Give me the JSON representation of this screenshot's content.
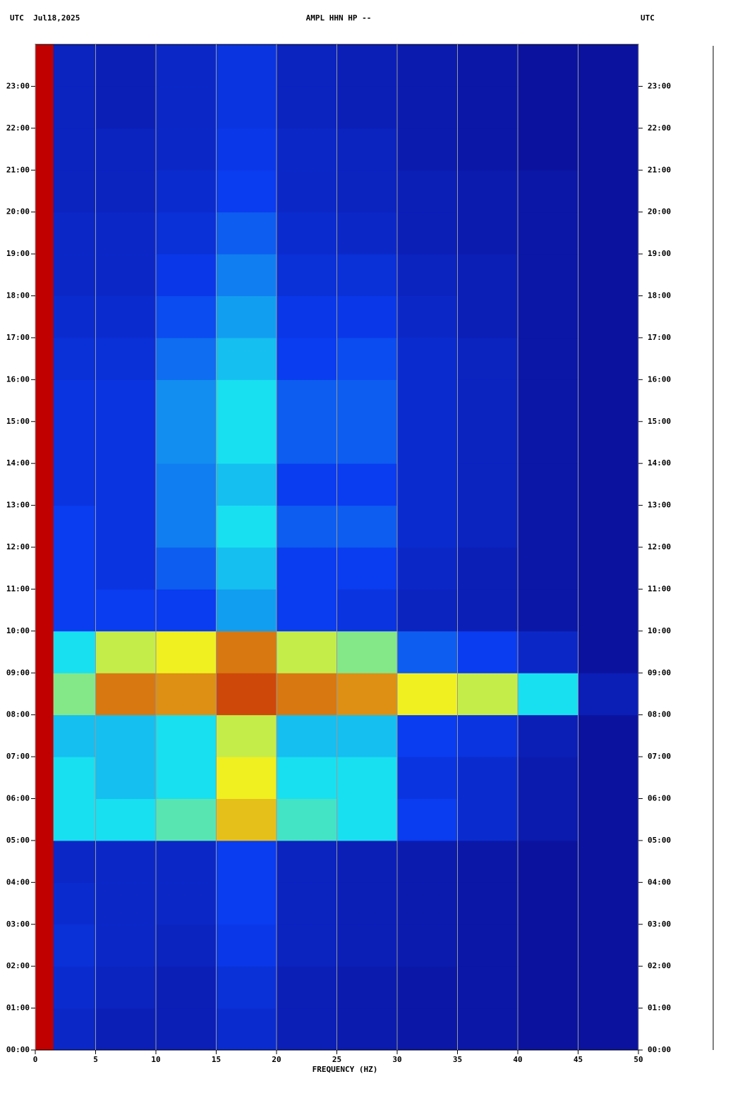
{
  "chart_data": {
    "type": "heatmap",
    "title": "AMPL HHN HP --",
    "header_left": "UTC  Jul18,2025",
    "header_right": "UTC",
    "xlabel": "FREQUENCY (HZ)",
    "xlim": [
      0,
      50
    ],
    "ylim": [
      0,
      24
    ],
    "xticks": [
      0,
      5,
      10,
      15,
      20,
      25,
      30,
      35,
      40,
      45,
      50
    ],
    "yticks": [
      {
        "value": 0,
        "label": "00:00"
      },
      {
        "value": 1,
        "label": "01:00"
      },
      {
        "value": 2,
        "label": "02:00"
      },
      {
        "value": 3,
        "label": "03:00"
      },
      {
        "value": 4,
        "label": "04:00"
      },
      {
        "value": 5,
        "label": "05:00"
      },
      {
        "value": 6,
        "label": "06:00"
      },
      {
        "value": 7,
        "label": "07:00"
      },
      {
        "value": 8,
        "label": "08:00"
      },
      {
        "value": 9,
        "label": "09:00"
      },
      {
        "value": 10,
        "label": "10:00"
      },
      {
        "value": 11,
        "label": "11:00"
      },
      {
        "value": 12,
        "label": "12:00"
      },
      {
        "value": 13,
        "label": "13:00"
      },
      {
        "value": 14,
        "label": "14:00"
      },
      {
        "value": 15,
        "label": "15:00"
      },
      {
        "value": 16,
        "label": "16:00"
      },
      {
        "value": 17,
        "label": "17:00"
      },
      {
        "value": 18,
        "label": "18:00"
      },
      {
        "value": 19,
        "label": "19:00"
      },
      {
        "value": 20,
        "label": "20:00"
      },
      {
        "value": 21,
        "label": "21:00"
      },
      {
        "value": 22,
        "label": "22:00"
      },
      {
        "value": 23,
        "label": "23:00"
      }
    ],
    "grid": true,
    "xbins": [
      0,
      1.5,
      5,
      10,
      15,
      20,
      25,
      30,
      35,
      40,
      45,
      50
    ],
    "ybins": [
      0,
      1,
      2,
      3,
      4,
      5,
      6,
      7,
      8,
      9,
      10,
      11,
      12,
      13,
      14,
      15,
      16,
      17,
      18,
      19,
      20,
      21,
      22,
      23,
      24
    ],
    "zlim": [
      0,
      4
    ],
    "colors": [
      "#0b139e",
      "#0a3cf0",
      "#18e0f0",
      "#f0f020",
      "#c00000"
    ],
    "values": [
      [
        4,
        0.5,
        0.3,
        0.3,
        0.6,
        0.3,
        0.2,
        0.1,
        0.1,
        0,
        0
      ],
      [
        4,
        0.6,
        0.4,
        0.3,
        0.7,
        0.3,
        0.2,
        0.1,
        0.1,
        0,
        0
      ],
      [
        4,
        0.7,
        0.5,
        0.4,
        0.9,
        0.4,
        0.3,
        0.2,
        0.1,
        0,
        0
      ],
      [
        4,
        0.6,
        0.5,
        0.5,
        1,
        0.4,
        0.3,
        0.2,
        0.1,
        0,
        0
      ],
      [
        4,
        0.5,
        0.5,
        0.5,
        1,
        0.4,
        0.3,
        0.2,
        0.1,
        0,
        0
      ],
      [
        4,
        2,
        2,
        2.3,
        3.2,
        2.2,
        2,
        1,
        0.6,
        0.2,
        0
      ],
      [
        4,
        2,
        1.8,
        2,
        3,
        2,
        2,
        0.8,
        0.6,
        0.2,
        0
      ],
      [
        4,
        1.8,
        1.8,
        2,
        2.8,
        1.8,
        1.8,
        1,
        0.8,
        0.3,
        0
      ],
      [
        4,
        2.5,
        3.5,
        3.4,
        3.7,
        3.5,
        3.4,
        3,
        2.8,
        2,
        0.3
      ],
      [
        4,
        2,
        2.8,
        3,
        3.5,
        2.8,
        2.5,
        1.2,
        1,
        0.5,
        0
      ],
      [
        4,
        1,
        1,
        1,
        1.6,
        1,
        0.8,
        0.4,
        0.3,
        0.1,
        0
      ],
      [
        4,
        1,
        0.8,
        1.2,
        1.8,
        1,
        1,
        0.5,
        0.3,
        0.1,
        0
      ],
      [
        4,
        1,
        0.8,
        1.4,
        2,
        1.2,
        1.2,
        0.6,
        0.4,
        0.1,
        0
      ],
      [
        4,
        0.8,
        0.8,
        1.4,
        1.8,
        1,
        1,
        0.6,
        0.4,
        0.1,
        0
      ],
      [
        4,
        0.8,
        0.8,
        1.5,
        2,
        1.2,
        1.2,
        0.6,
        0.4,
        0.1,
        0
      ],
      [
        4,
        0.8,
        0.8,
        1.5,
        2,
        1.2,
        1.2,
        0.6,
        0.4,
        0.1,
        0
      ],
      [
        4,
        0.7,
        0.7,
        1.3,
        1.8,
        1,
        1.1,
        0.6,
        0.4,
        0.1,
        0
      ],
      [
        4,
        0.6,
        0.6,
        1.1,
        1.6,
        0.9,
        0.9,
        0.5,
        0.3,
        0.1,
        0
      ],
      [
        4,
        0.5,
        0.5,
        0.9,
        1.4,
        0.7,
        0.7,
        0.4,
        0.3,
        0.1,
        0
      ],
      [
        4,
        0.5,
        0.5,
        0.7,
        1.2,
        0.6,
        0.5,
        0.3,
        0.2,
        0.1,
        0
      ],
      [
        4,
        0.4,
        0.4,
        0.6,
        1,
        0.5,
        0.4,
        0.3,
        0.2,
        0.1,
        0
      ],
      [
        4,
        0.4,
        0.4,
        0.5,
        0.9,
        0.5,
        0.4,
        0.2,
        0.1,
        0,
        0
      ],
      [
        4,
        0.4,
        0.3,
        0.5,
        0.8,
        0.4,
        0.3,
        0.2,
        0.1,
        0,
        0
      ],
      [
        4,
        0.4,
        0.3,
        0.5,
        0.8,
        0.4,
        0.3,
        0.2,
        0.1,
        0,
        0
      ]
    ]
  }
}
